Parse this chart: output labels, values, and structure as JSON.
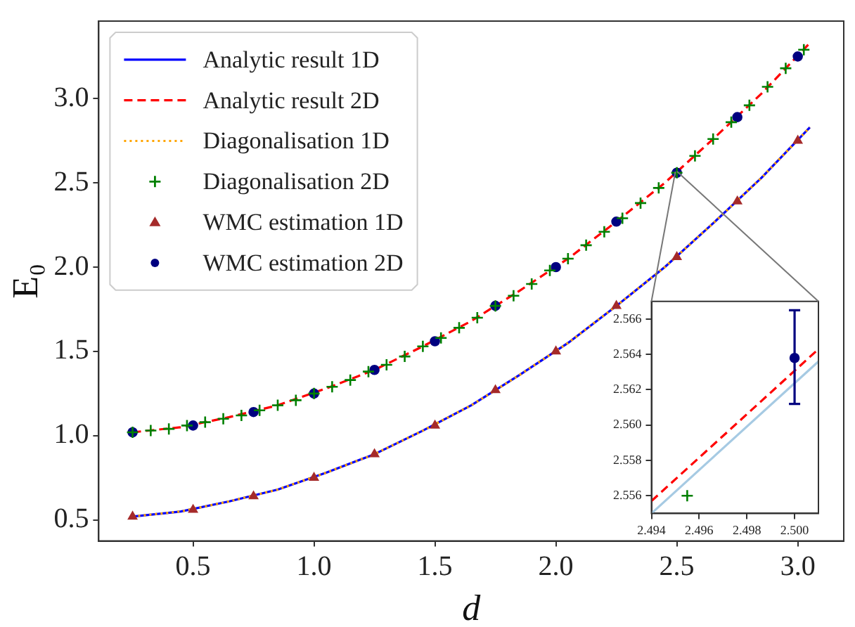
{
  "chart_data": [
    {
      "type": "line",
      "xlabel": "d",
      "ylabel": "E₀",
      "xlim": [
        0.11,
        3.19
      ],
      "ylim": [
        0.375,
        3.46
      ],
      "xticks": [
        0.5,
        {
          "value": 1.0,
          "label": "1.0"
        },
        1.5,
        {
          "value": 2.0,
          "label": "2.0"
        },
        2.5,
        {
          "value": 3.0,
          "label": "3.0"
        }
      ],
      "yticks": [
        0.5,
        {
          "value": 1.0,
          "label": "1.0"
        },
        1.5,
        {
          "value": 2.0,
          "label": "2.0"
        },
        2.5,
        {
          "value": 3.0,
          "label": "3.0"
        }
      ],
      "grid": false,
      "legend": "top left",
      "series": [
        {
          "name": "Analytic result 1D",
          "type": "line",
          "color": "#0000ff",
          "line_style": "solid",
          "marker": "none",
          "x": [
            0.25,
            0.45,
            0.65,
            0.85,
            1.05,
            1.25,
            1.45,
            1.65,
            1.85,
            2.05,
            2.25,
            2.45,
            2.65,
            2.85,
            3.05
          ],
          "values": [
            0.52,
            0.55,
            0.61,
            0.68,
            0.78,
            0.89,
            1.03,
            1.18,
            1.36,
            1.55,
            1.77,
            2.0,
            2.26,
            2.53,
            2.83
          ]
        },
        {
          "name": "Analytic result 2D",
          "type": "line",
          "color": "#ff0000",
          "line_style": "dashed",
          "marker": "none",
          "x": [
            0.25,
            0.45,
            0.65,
            0.85,
            1.05,
            1.25,
            1.45,
            1.65,
            1.85,
            2.05,
            2.25,
            2.45,
            2.65,
            2.85,
            3.05
          ],
          "values": [
            1.02,
            1.05,
            1.11,
            1.18,
            1.28,
            1.39,
            1.53,
            1.68,
            1.86,
            2.05,
            2.27,
            2.5,
            2.76,
            3.03,
            3.33
          ]
        },
        {
          "name": "Diagonalisation 1D",
          "type": "line",
          "color": "#ffa500",
          "line_style": "dotted",
          "marker": "none",
          "x": [
            0.25,
            0.45,
            0.65,
            0.85,
            1.05,
            1.25,
            1.45,
            1.65,
            1.85,
            2.05,
            2.25,
            2.45,
            2.65,
            2.85,
            3.05
          ],
          "values": [
            0.52,
            0.55,
            0.61,
            0.68,
            0.78,
            0.89,
            1.03,
            1.18,
            1.36,
            1.55,
            1.77,
            2.0,
            2.26,
            2.53,
            2.83
          ]
        },
        {
          "name": "Diagonalisation 2D",
          "type": "scatter",
          "color": "#008000",
          "marker": "cross",
          "x": [
            0.25,
            0.325,
            0.4,
            0.475,
            0.55,
            0.625,
            0.7,
            0.775,
            0.85,
            0.925,
            1.0,
            1.075,
            1.15,
            1.225,
            1.3,
            1.375,
            1.45,
            1.525,
            1.6,
            1.675,
            1.75,
            1.825,
            1.9,
            1.975,
            2.05,
            2.125,
            2.2,
            2.275,
            2.35,
            2.425,
            2.5,
            2.575,
            2.65,
            2.725,
            2.8,
            2.875,
            2.95,
            3.025
          ],
          "values": [
            1.02,
            1.03,
            1.04,
            1.06,
            1.08,
            1.1,
            1.12,
            1.15,
            1.18,
            1.21,
            1.25,
            1.29,
            1.33,
            1.38,
            1.42,
            1.47,
            1.53,
            1.58,
            1.64,
            1.7,
            1.77,
            1.83,
            1.9,
            1.98,
            2.05,
            2.13,
            2.21,
            2.29,
            2.38,
            2.47,
            2.56,
            2.66,
            2.76,
            2.86,
            2.96,
            3.07,
            3.18,
            3.29
          ]
        },
        {
          "name": "WMC estimation 1D",
          "type": "scatter",
          "color": "#a52a2a",
          "marker": "triangle",
          "x": [
            0.25,
            0.5,
            0.75,
            1.0,
            1.25,
            1.5,
            1.75,
            2.0,
            2.25,
            2.5,
            2.75,
            3.0
          ],
          "values": [
            0.52,
            0.56,
            0.64,
            0.75,
            0.89,
            1.06,
            1.27,
            1.5,
            1.77,
            2.06,
            2.39,
            2.75
          ]
        },
        {
          "name": "WMC estimation 2D",
          "type": "scatter",
          "color": "#000080",
          "marker": "circle",
          "x": [
            0.25,
            0.5,
            0.75,
            1.0,
            1.25,
            1.5,
            1.75,
            2.0,
            2.25,
            2.5,
            2.75,
            3.0
          ],
          "values": [
            1.02,
            1.06,
            1.14,
            1.25,
            1.39,
            1.56,
            1.77,
            2.0,
            2.27,
            2.56,
            2.89,
            3.25
          ]
        }
      ]
    },
    {
      "type": "line",
      "xlim": [
        2.494,
        2.501
      ],
      "ylim": [
        2.555,
        2.567
      ],
      "xticks": [
        2.494,
        2.496,
        2.498,
        {
          "value": 2.5,
          "label": "2.500"
        }
      ],
      "yticks": [
        2.556,
        2.558,
        {
          "value": 2.56,
          "label": "2.560"
        },
        2.562,
        2.564,
        2.566
      ],
      "grid": false,
      "legend": false,
      "series": [
        {
          "type": "line",
          "color": "#a6cae3",
          "line_style": "solid",
          "marker": "none",
          "x": [
            2.494,
            2.501
          ],
          "values": [
            2.555,
            2.5636
          ]
        },
        {
          "type": "line",
          "color": "#ff0000",
          "line_style": "dashed",
          "marker": "none",
          "x": [
            2.494,
            2.501
          ],
          "values": [
            2.5557,
            2.5643
          ]
        },
        {
          "type": "scatter",
          "color": "#008000",
          "marker": "cross",
          "x": [
            2.4955
          ],
          "values": [
            2.556
          ]
        },
        {
          "type": "scatter",
          "color": "#000080",
          "marker": "circle",
          "x": [
            2.5
          ],
          "values": [
            2.5638
          ],
          "errors": [
            [
              2.5612,
              2.5665
            ]
          ]
        }
      ]
    }
  ]
}
